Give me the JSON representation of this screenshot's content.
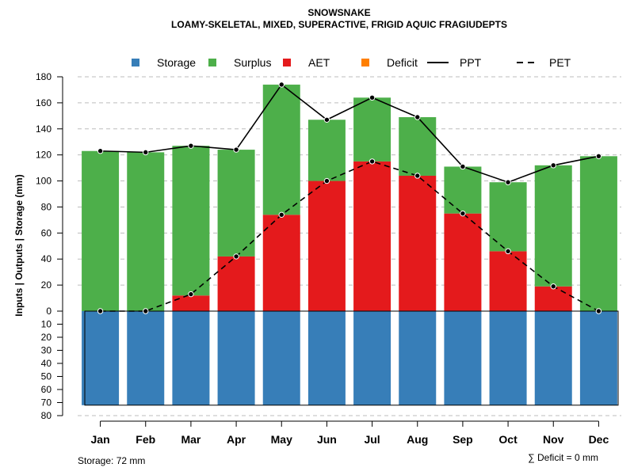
{
  "chart_data": {
    "type": "bar",
    "title": "SNOWSNAKE",
    "subtitle": "LOAMY-SKELETAL, MIXED, SUPERACTIVE, FRIGID AQUIC FRAGIUDEPTS",
    "ylabel": "Inputs | Outputs | Storage    (mm)",
    "categories": [
      "Jan",
      "Feb",
      "Mar",
      "Apr",
      "May",
      "Jun",
      "Jul",
      "Aug",
      "Sep",
      "Oct",
      "Nov",
      "Dec"
    ],
    "upper_axis": {
      "range": [
        0,
        180
      ],
      "ticks": [
        "0",
        "20",
        "40",
        "60",
        "80",
        "100",
        "120",
        "140",
        "160",
        "180"
      ]
    },
    "lower_axis": {
      "range": [
        0,
        80
      ],
      "ticks": [
        "10",
        "20",
        "30",
        "40",
        "50",
        "60",
        "70",
        "80"
      ]
    },
    "legend": [
      {
        "name": "Storage",
        "kind": "box",
        "color": "#377EB8"
      },
      {
        "name": "Surplus",
        "kind": "box",
        "color": "#4DAF4A"
      },
      {
        "name": "AET",
        "kind": "box",
        "color": "#E41A1C"
      },
      {
        "name": "Deficit",
        "kind": "box",
        "color": "#FF7F00"
      },
      {
        "name": "PPT",
        "kind": "solid",
        "color": "#000000"
      },
      {
        "name": "PET",
        "kind": "dashed",
        "color": "#000000"
      }
    ],
    "series": [
      {
        "name": "AET",
        "color": "#E41A1C",
        "values": [
          0,
          0,
          12,
          42,
          74,
          100,
          115,
          104,
          75,
          46,
          19,
          0
        ]
      },
      {
        "name": "Surplus",
        "color": "#4DAF4A",
        "values": [
          123,
          122,
          115,
          82,
          100,
          47,
          49,
          45,
          36,
          53,
          93,
          119
        ]
      },
      {
        "name": "Storage",
        "color": "#377EB8",
        "values": [
          72,
          72,
          72,
          72,
          72,
          72,
          72,
          72,
          72,
          72,
          72,
          72
        ]
      },
      {
        "name": "Deficit",
        "color": "#FF7F00",
        "values": [
          0,
          0,
          0,
          0,
          0,
          0,
          0,
          0,
          0,
          0,
          0,
          0
        ]
      },
      {
        "name": "PPT",
        "color": "#000000",
        "values": [
          123,
          122,
          127,
          124,
          174,
          147,
          164,
          149,
          111,
          99,
          112,
          119
        ]
      },
      {
        "name": "PET",
        "color": "#000000",
        "values": [
          0,
          0,
          13,
          42,
          74,
          100,
          115,
          104,
          75,
          46,
          19,
          0
        ]
      }
    ],
    "storage_note": "Storage: 72 mm",
    "deficit_note": "∑ Deficit = 0 mm"
  }
}
